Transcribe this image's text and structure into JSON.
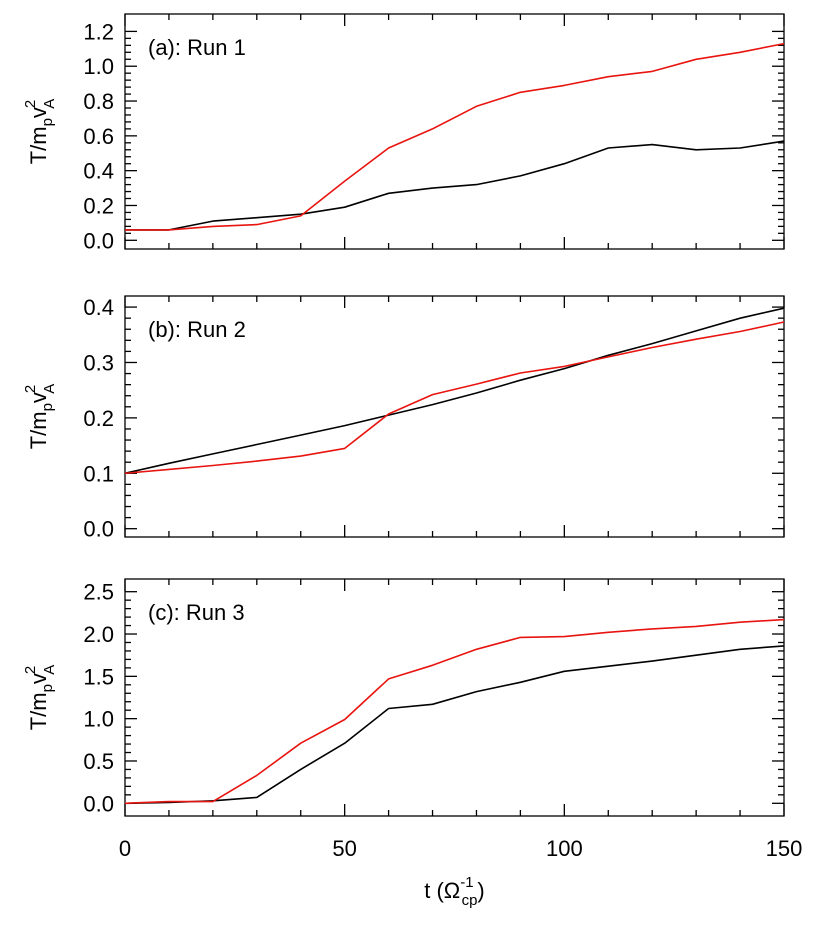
{
  "chart_data": [
    {
      "type": "line",
      "panel_label": "(a): Run 1",
      "ylabel": {
        "main": "T/m",
        "sub1": "p",
        "v": "v",
        "sup": "2",
        "sub2": "A"
      },
      "xlim": [
        0,
        150
      ],
      "ylim": [
        -0.05,
        1.3
      ],
      "yticks": [
        0.0,
        0.2,
        0.4,
        0.6,
        0.8,
        1.0,
        1.2
      ],
      "ytick_labels": [
        "0.0",
        "0.2",
        "0.4",
        "0.6",
        "0.8",
        "1.0",
        "1.2"
      ],
      "xticks": [
        0,
        50,
        100,
        150
      ],
      "show_xtick_labels": false,
      "x": [
        0,
        10,
        20,
        30,
        40,
        50,
        60,
        70,
        80,
        90,
        100,
        110,
        120,
        130,
        140,
        150
      ],
      "series": [
        {
          "color": "#000000",
          "values": [
            0.06,
            0.06,
            0.11,
            0.13,
            0.15,
            0.19,
            0.27,
            0.3,
            0.32,
            0.37,
            0.44,
            0.53,
            0.55,
            0.52,
            0.53,
            0.57
          ]
        },
        {
          "color": "#e8140f",
          "values": [
            0.06,
            0.06,
            0.08,
            0.09,
            0.14,
            0.34,
            0.53,
            0.64,
            0.77,
            0.85,
            0.89,
            0.94,
            0.97,
            1.04,
            1.08,
            1.13
          ]
        }
      ]
    },
    {
      "type": "line",
      "panel_label": "(b): Run 2",
      "ylabel": {
        "main": "T/m",
        "sub1": "p",
        "v": "v",
        "sup": "2",
        "sub2": "A"
      },
      "xlim": [
        0,
        150
      ],
      "ylim": [
        -0.015,
        0.42
      ],
      "yticks": [
        0.0,
        0.1,
        0.2,
        0.3,
        0.4
      ],
      "ytick_labels": [
        "0.0",
        "0.1",
        "0.2",
        "0.3",
        "0.4"
      ],
      "xticks": [
        0,
        50,
        100,
        150
      ],
      "show_xtick_labels": false,
      "x": [
        0,
        10,
        20,
        30,
        40,
        50,
        60,
        70,
        80,
        90,
        100,
        110,
        120,
        130,
        140,
        150
      ],
      "series": [
        {
          "color": "#000000",
          "values": [
            0.1,
            0.118,
            0.135,
            0.152,
            0.169,
            0.186,
            0.205,
            0.224,
            0.245,
            0.268,
            0.289,
            0.313,
            0.334,
            0.357,
            0.38,
            0.398
          ]
        },
        {
          "color": "#e8140f",
          "values": [
            0.1,
            0.107,
            0.114,
            0.122,
            0.131,
            0.145,
            0.207,
            0.242,
            0.261,
            0.281,
            0.293,
            0.31,
            0.327,
            0.342,
            0.356,
            0.373
          ]
        }
      ]
    },
    {
      "type": "line",
      "panel_label": "(c): Run 3",
      "ylabel": {
        "main": "T/m",
        "sub1": "p",
        "v": "v",
        "sup": "2",
        "sub2": "A"
      },
      "xlabel": {
        "t": "t (Ω",
        "sup": "-1",
        "sub": "cp",
        "close": ")"
      },
      "xlim": [
        0,
        150
      ],
      "ylim": [
        -0.15,
        2.65
      ],
      "yticks": [
        0.0,
        0.5,
        1.0,
        1.5,
        2.0,
        2.5
      ],
      "ytick_labels": [
        "0.0",
        "0.5",
        "1.0",
        "1.5",
        "2.0",
        "2.5"
      ],
      "xticks": [
        0,
        50,
        100,
        150
      ],
      "xtick_labels": [
        "0",
        "50",
        "100",
        "150"
      ],
      "show_xtick_labels": true,
      "x": [
        0,
        10,
        20,
        30,
        40,
        50,
        60,
        70,
        80,
        90,
        100,
        110,
        120,
        130,
        140,
        150
      ],
      "series": [
        {
          "color": "#000000",
          "values": [
            0.0,
            0.01,
            0.03,
            0.07,
            0.4,
            0.71,
            1.12,
            1.17,
            1.32,
            1.43,
            1.56,
            1.62,
            1.68,
            1.75,
            1.82,
            1.86
          ]
        },
        {
          "color": "#e8140f",
          "values": [
            0.0,
            0.02,
            0.02,
            0.33,
            0.71,
            0.99,
            1.47,
            1.63,
            1.82,
            1.96,
            1.97,
            2.02,
            2.06,
            2.09,
            2.14,
            2.17
          ]
        }
      ]
    }
  ]
}
